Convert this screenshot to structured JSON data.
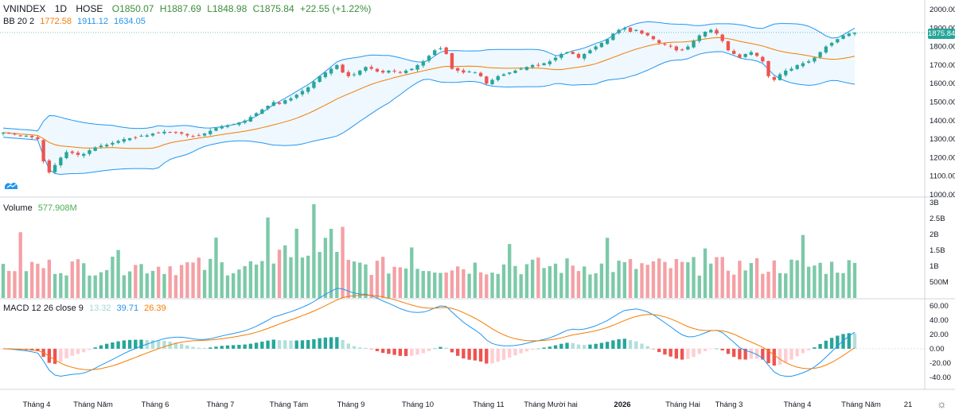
{
  "legend": {
    "symbol": "VNINDEX",
    "interval": "1D",
    "exchange": "HOSE",
    "open": "O1850.07",
    "high": "H1887.69",
    "low": "L1848.98",
    "close": "C1875.84",
    "change": "+22.55 (+1.22%)",
    "bb_label": "BB 20 2",
    "bb_basis": "1772.58",
    "bb_upper": "1911.12",
    "bb_lower": "1634.05",
    "volume_label": "Volume",
    "volume_value": "577.908M",
    "macd_label": "MACD 12 26 close 9",
    "macd_hist": "13.32",
    "macd_line": "39.71",
    "macd_signal": "26.39"
  },
  "price_tag": "1875.84",
  "colors": {
    "up": "#26a69a",
    "down": "#ef5350",
    "bb_basis": "#f57c00",
    "bb_band": "#2196f3",
    "macd_line": "#2196f3",
    "macd_signal": "#f57c00"
  },
  "chart_data": {
    "type": "candlestick",
    "panes": [
      {
        "name": "price",
        "ticks": [
          "2000.00",
          "1900.00",
          "1800.00",
          "1700.00",
          "1600.00",
          "1500.00",
          "1400.00",
          "1300.00",
          "1200.00",
          "1100.00",
          "1000.00"
        ],
        "ylim": [
          1000,
          2000
        ],
        "series_close": [
          1335,
          1330,
          1325,
          1320,
          1318,
          1310,
          1300,
          1180,
          1120,
          1160,
          1200,
          1230,
          1225,
          1215,
          1220,
          1240,
          1255,
          1265,
          1270,
          1280,
          1290,
          1300,
          1305,
          1310,
          1318,
          1320,
          1330,
          1335,
          1340,
          1338,
          1335,
          1330,
          1320,
          1315,
          1320,
          1330,
          1345,
          1360,
          1370,
          1375,
          1380,
          1390,
          1400,
          1420,
          1440,
          1460,
          1480,
          1500,
          1490,
          1510,
          1520,
          1540,
          1560,
          1580,
          1610,
          1640,
          1660,
          1680,
          1700,
          1660,
          1640,
          1650,
          1670,
          1690,
          1680,
          1665,
          1660,
          1670,
          1665,
          1660,
          1670,
          1680,
          1700,
          1720,
          1750,
          1780,
          1790,
          1760,
          1680,
          1670,
          1660,
          1665,
          1660,
          1640,
          1600,
          1620,
          1640,
          1650,
          1660,
          1670,
          1680,
          1690,
          1700,
          1700,
          1710,
          1720,
          1740,
          1760,
          1770,
          1760,
          1740,
          1760,
          1780,
          1800,
          1820,
          1840,
          1870,
          1890,
          1900,
          1880,
          1890,
          1870,
          1860,
          1840,
          1820,
          1810,
          1800,
          1780,
          1780,
          1800,
          1830,
          1860,
          1880,
          1890,
          1870,
          1830,
          1780,
          1760,
          1740,
          1760,
          1770,
          1750,
          1720,
          1640,
          1620,
          1650,
          1670,
          1680,
          1700,
          1710,
          1720,
          1740,
          1770,
          1800,
          1820,
          1840,
          1860,
          1870,
          1875
        ]
      },
      {
        "name": "volume",
        "ticks": [
          "3B",
          "2.5B",
          "2B",
          "1.5B",
          "1B",
          "500M"
        ],
        "ylim": [
          0,
          3
        ]
      },
      {
        "name": "macd",
        "ticks": [
          "60.00",
          "40.00",
          "20.00",
          "0.00",
          "-20.00",
          "-40.00"
        ],
        "ylim": [
          -50,
          62
        ]
      }
    ],
    "x_ticks": [
      "Tháng 4",
      "Tháng Năm",
      "Tháng 6",
      "Tháng 7",
      "Tháng Tám",
      "Tháng 9",
      "Tháng 10",
      "Tháng 11",
      "Tháng Mười hai",
      "2026",
      "Tháng Hai",
      "Tháng 3",
      "Tháng 4",
      "Tháng Năm",
      "21"
    ]
  }
}
